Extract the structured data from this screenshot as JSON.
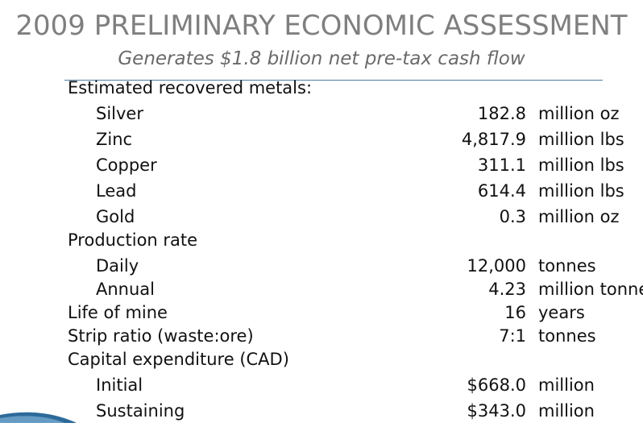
{
  "header": {
    "title": "2009 PRELIMINARY ECONOMIC ASSESSMENT",
    "subtitle": "Generates $1.8 billion net pre-tax cash flow"
  },
  "rows": [
    {
      "label": "Estimated recovered metals:",
      "value": "",
      "unit": "",
      "indent": false
    },
    {
      "label": "Silver",
      "value": "182.8",
      "unit": "million oz",
      "indent": true
    },
    {
      "label": "Zinc",
      "value": "4,817.9",
      "unit": "million lbs",
      "indent": true
    },
    {
      "label": "Copper",
      "value": "311.1",
      "unit": "million lbs",
      "indent": true
    },
    {
      "label": "Lead",
      "value": "614.4",
      "unit": "million lbs",
      "indent": true
    },
    {
      "label": "Gold",
      "value": "0.3",
      "unit": "million oz",
      "indent": true
    },
    {
      "label": "Production rate",
      "value": "",
      "unit": "",
      "indent": false
    },
    {
      "label": "Daily",
      "value": "12,000",
      "unit": "tonnes",
      "indent": true
    },
    {
      "label": "Annual",
      "value": "4.23",
      "unit": "million tonnes",
      "indent": true
    },
    {
      "label": "Life of mine",
      "value": "16",
      "unit": "years",
      "indent": false
    },
    {
      "label": "Strip ratio (waste:ore)",
      "value": "7:1",
      "unit": "tonnes",
      "indent": false
    },
    {
      "label": "Capital expenditure (CAD)",
      "value": "",
      "unit": "",
      "indent": false
    },
    {
      "label": "Initial",
      "value": "$668.0",
      "unit": "million",
      "indent": true
    },
    {
      "label": "Sustaining",
      "value": "$343.0",
      "unit": "million",
      "indent": true
    }
  ],
  "colors": {
    "title": "#7f7f7f",
    "rule": "#4f7fa8",
    "text": "#111111"
  }
}
